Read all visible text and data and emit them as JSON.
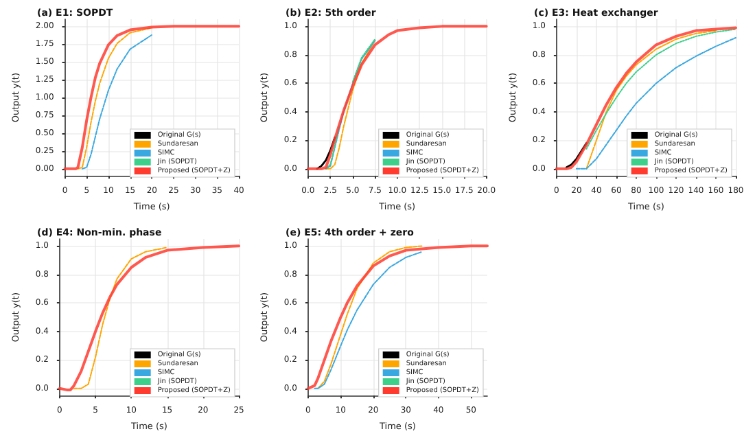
{
  "chart_data": [
    {
      "type": "line",
      "title": "(a) E1: SOPDT",
      "xlabel": "Time (s)",
      "ylabel": "Output y(t)",
      "grid": true,
      "legend": "bottom right",
      "x": [
        0,
        2.5,
        3,
        4,
        5,
        6,
        7,
        8,
        10,
        12,
        15,
        20,
        25,
        30,
        40
      ],
      "xlim": [
        0,
        40
      ],
      "xticks": [
        0,
        5,
        10,
        15,
        20,
        25,
        30,
        35,
        40
      ],
      "ylim": [
        -0.1,
        2.1
      ],
      "yticks": [
        {
          "value": 0,
          "label": "0.00"
        },
        {
          "value": 0.25,
          "label": "0.25"
        },
        {
          "value": 0.5,
          "label": "0.50"
        },
        {
          "value": 0.75,
          "label": "0.75"
        },
        {
          "value": 1,
          "label": "1.00"
        },
        {
          "value": 1.25,
          "label": "1.25"
        },
        {
          "value": 1.5,
          "label": "1.50"
        },
        {
          "value": 1.75,
          "label": "1.75"
        },
        {
          "value": 2,
          "label": "2.00"
        }
      ],
      "series": [
        {
          "name": "Original G(s)",
          "color": "#000000",
          "line_style": "solid",
          "values": [
            null,
            null,
            null,
            null,
            null,
            null,
            null,
            null,
            null,
            null,
            null,
            null,
            null,
            null,
            null
          ]
        },
        {
          "name": "Sundaresan",
          "color": "#ffa500",
          "line_style": "dashed",
          "values": [
            null,
            null,
            0,
            0.02,
            0.3,
            0.65,
            0.95,
            1.2,
            1.55,
            1.76,
            1.91,
            1.98,
            null,
            null,
            null
          ]
        },
        {
          "name": "SIMC",
          "color": "#3aa8e0",
          "line_style": "dashed",
          "values": [
            null,
            null,
            null,
            0,
            0.02,
            0.2,
            0.45,
            0.7,
            1.1,
            1.4,
            1.68,
            1.88,
            null,
            null,
            null
          ]
        },
        {
          "name": "Jin (SOPDT)",
          "color": "#3cd08a",
          "line_style": "dotted",
          "values": [
            null,
            null,
            null,
            null,
            null,
            null,
            null,
            null,
            null,
            null,
            null,
            null,
            null,
            null,
            null
          ]
        },
        {
          "name": "Proposed (SOPDT+Z)",
          "color": "#ff3b30",
          "line_style": "solid",
          "values": [
            0,
            0,
            0.02,
            0.3,
            0.68,
            1.0,
            1.28,
            1.48,
            1.74,
            1.87,
            1.95,
            1.99,
            2,
            2,
            2
          ]
        }
      ]
    },
    {
      "type": "line",
      "title": "(b) E2: 5th order",
      "xlabel": "Time (s)",
      "ylabel": "Output y(t)",
      "grid": true,
      "legend": "bottom right",
      "x": [
        0,
        1,
        1.5,
        2,
        2.5,
        3,
        3.5,
        4,
        5,
        6,
        7.5,
        9,
        10,
        12.5,
        15,
        20
      ],
      "xlim": [
        0,
        20
      ],
      "xticks": [
        {
          "value": 0,
          "label": "0.0"
        },
        {
          "value": 2.5,
          "label": "2.5"
        },
        {
          "value": 5,
          "label": "5.0"
        },
        {
          "value": 7.5,
          "label": "7.5"
        },
        {
          "value": 10,
          "label": "10.0"
        },
        {
          "value": 12.5,
          "label": "12.5"
        },
        {
          "value": 15,
          "label": "15.0"
        },
        {
          "value": 17.5,
          "label": "17.5"
        },
        {
          "value": 20,
          "label": "20.0"
        }
      ],
      "ylim": [
        -0.05,
        1.05
      ],
      "yticks": [
        {
          "value": 0,
          "label": "0.0"
        },
        {
          "value": 0.2,
          "label": "0.2"
        },
        {
          "value": 0.4,
          "label": "0.4"
        },
        {
          "value": 0.6,
          "label": "0.6"
        },
        {
          "value": 0.8,
          "label": "0.8"
        },
        {
          "value": 1,
          "label": "1.0"
        }
      ],
      "series": [
        {
          "name": "Original G(s)",
          "color": "#000000",
          "line_style": "solid",
          "values": [
            null,
            0,
            0.02,
            0.06,
            0.13,
            0.22,
            null,
            null,
            null,
            null,
            null,
            null,
            null,
            null,
            null,
            null
          ]
        },
        {
          "name": "Sundaresan",
          "color": "#ffa500",
          "line_style": "dashed",
          "values": [
            null,
            null,
            null,
            0,
            0,
            0.03,
            0.15,
            0.3,
            0.55,
            0.74,
            0.9,
            null,
            null,
            null,
            null,
            null
          ]
        },
        {
          "name": "SIMC",
          "color": "#3aa8e0",
          "line_style": "dashed",
          "values": [
            null,
            null,
            null,
            0,
            0.02,
            0.15,
            0.28,
            0.4,
            0.6,
            0.77,
            0.9,
            null,
            null,
            null,
            null,
            null
          ]
        },
        {
          "name": "Jin (SOPDT)",
          "color": "#3cd08a",
          "line_style": "dotted",
          "values": [
            null,
            null,
            null,
            0,
            0.03,
            0.16,
            0.3,
            null,
            0.61,
            0.78,
            0.91,
            null,
            null,
            null,
            null,
            null
          ]
        },
        {
          "name": "Proposed (SOPDT+Z)",
          "color": "#ff3b30",
          "line_style": "solid",
          "values": [
            0,
            0,
            0,
            0.01,
            0.1,
            0.21,
            0.31,
            0.41,
            0.58,
            0.73,
            0.87,
            0.94,
            0.97,
            0.99,
            1,
            1
          ]
        }
      ]
    },
    {
      "type": "line",
      "title": "(c) E3: Heat exchanger",
      "xlabel": "Time (s)",
      "ylabel": "Output y(t)",
      "grid": true,
      "legend": "bottom right",
      "x": [
        0,
        10,
        15,
        20,
        30,
        40,
        50,
        60,
        70,
        80,
        100,
        120,
        140,
        160,
        180
      ],
      "xlim": [
        0,
        180
      ],
      "xticks": [
        0,
        20,
        40,
        60,
        80,
        100,
        120,
        140,
        160,
        180
      ],
      "ylim": [
        -0.05,
        1.05
      ],
      "yticks": [
        {
          "value": 0,
          "label": "0.0"
        },
        {
          "value": 0.2,
          "label": "0.2"
        },
        {
          "value": 0.4,
          "label": "0.4"
        },
        {
          "value": 0.6,
          "label": "0.6"
        },
        {
          "value": 0.8,
          "label": "0.8"
        },
        {
          "value": 1,
          "label": "1.0"
        }
      ],
      "series": [
        {
          "name": "Original G(s)",
          "color": "#000000",
          "line_style": "solid",
          "values": [
            null,
            0.01,
            0.03,
            0.07,
            0.18,
            null,
            null,
            null,
            null,
            null,
            null,
            null,
            null,
            null,
            null
          ]
        },
        {
          "name": "Sundaresan",
          "color": "#ffa500",
          "line_style": "dashed",
          "values": [
            null,
            null,
            null,
            null,
            0,
            0.2,
            0.4,
            0.55,
            0.65,
            0.73,
            0.84,
            0.91,
            0.95,
            0.97,
            null
          ]
        },
        {
          "name": "SIMC",
          "color": "#3aa8e0",
          "line_style": "dashed",
          "values": [
            null,
            null,
            null,
            0,
            0,
            0.07,
            0.17,
            0.27,
            0.37,
            0.46,
            0.6,
            0.71,
            0.79,
            0.86,
            0.92
          ]
        },
        {
          "name": "Jin (SOPDT)",
          "color": "#3cd08a",
          "line_style": "dotted",
          "values": [
            null,
            null,
            null,
            null,
            0.14,
            0.27,
            0.39,
            0.5,
            0.6,
            0.68,
            0.8,
            0.88,
            0.93,
            0.96,
            0.98
          ]
        },
        {
          "name": "Proposed (SOPDT+Z)",
          "color": "#ff3b30",
          "line_style": "solid",
          "values": [
            0,
            0,
            0.01,
            0.05,
            0.17,
            0.31,
            0.45,
            0.57,
            0.67,
            0.75,
            0.87,
            0.93,
            0.97,
            0.98,
            0.99
          ]
        }
      ]
    },
    {
      "type": "line",
      "title": "(d) E4: Non-min. phase",
      "xlabel": "Time (s)",
      "ylabel": "Output y(t)",
      "grid": true,
      "legend": "bottom right",
      "x": [
        0,
        1,
        1.5,
        2,
        3,
        4,
        5,
        6,
        7,
        8,
        10,
        12,
        15,
        20,
        25
      ],
      "xlim": [
        0,
        25
      ],
      "xticks": [
        0,
        5,
        10,
        15,
        20,
        25
      ],
      "ylim": [
        -0.05,
        1.05
      ],
      "yticks": [
        {
          "value": 0,
          "label": "0.0"
        },
        {
          "value": 0.2,
          "label": "0.2"
        },
        {
          "value": 0.4,
          "label": "0.4"
        },
        {
          "value": 0.6,
          "label": "0.6"
        },
        {
          "value": 0.8,
          "label": "0.8"
        },
        {
          "value": 1,
          "label": "1.0"
        }
      ],
      "series": [
        {
          "name": "Original G(s)",
          "color": "#000000",
          "line_style": "solid",
          "values": [
            null,
            null,
            null,
            null,
            null,
            null,
            null,
            null,
            null,
            null,
            null,
            null,
            null,
            null,
            null
          ]
        },
        {
          "name": "Sundaresan",
          "color": "#ffa500",
          "line_style": "dashed",
          "values": [
            null,
            null,
            null,
            0,
            0,
            0.03,
            0.22,
            0.45,
            0.63,
            0.77,
            0.91,
            0.96,
            0.99,
            null,
            null
          ]
        },
        {
          "name": "SIMC",
          "color": "#3aa8e0",
          "line_style": "dashed",
          "values": [
            null,
            null,
            null,
            null,
            null,
            null,
            null,
            null,
            null,
            null,
            null,
            null,
            null,
            null,
            null
          ]
        },
        {
          "name": "Jin (SOPDT)",
          "color": "#3cd08a",
          "line_style": "dotted",
          "values": [
            null,
            null,
            null,
            null,
            null,
            null,
            null,
            null,
            null,
            null,
            null,
            null,
            null,
            null,
            null
          ]
        },
        {
          "name": "Proposed (SOPDT+Z)",
          "color": "#ff3b30",
          "line_style": "solid",
          "values": [
            0,
            -0.01,
            -0.01,
            0.02,
            0.12,
            0.26,
            0.4,
            0.53,
            0.64,
            0.73,
            0.85,
            0.92,
            0.97,
            0.99,
            1
          ]
        }
      ]
    },
    {
      "type": "line",
      "title": "(e) E5: 4th order + zero",
      "xlabel": "Time (s)",
      "ylabel": "Output y(t)",
      "grid": true,
      "legend": "bottom right",
      "x": [
        0,
        2,
        3,
        5,
        7,
        10,
        12,
        15,
        20,
        25,
        30,
        35,
        40,
        50,
        55
      ],
      "xlim": [
        0,
        55
      ],
      "xticks": [
        0,
        10,
        20,
        30,
        40,
        50
      ],
      "ylim": [
        -0.05,
        1.05
      ],
      "yticks": [
        {
          "value": 0,
          "label": "0.0"
        },
        {
          "value": 0.2,
          "label": "0.2"
        },
        {
          "value": 0.4,
          "label": "0.4"
        },
        {
          "value": 0.6,
          "label": "0.6"
        },
        {
          "value": 0.8,
          "label": "0.8"
        },
        {
          "value": 1,
          "label": "1.0"
        }
      ],
      "series": [
        {
          "name": "Original G(s)",
          "color": "#000000",
          "line_style": "solid",
          "values": [
            null,
            null,
            null,
            null,
            null,
            null,
            null,
            null,
            null,
            null,
            null,
            null,
            null,
            null,
            null
          ]
        },
        {
          "name": "Sundaresan",
          "color": "#ffa500",
          "line_style": "dashed",
          "values": [
            null,
            null,
            0,
            0.05,
            0.17,
            0.38,
            0.52,
            0.7,
            0.88,
            0.96,
            0.99,
            1,
            null,
            null,
            null
          ]
        },
        {
          "name": "SIMC",
          "color": "#3aa8e0",
          "line_style": "dashed",
          "values": [
            null,
            0,
            0,
            0.03,
            0.13,
            0.3,
            0.41,
            0.55,
            0.73,
            0.85,
            0.92,
            0.96,
            null,
            null,
            null
          ]
        },
        {
          "name": "Jin (SOPDT)",
          "color": "#3cd08a",
          "line_style": "dotted",
          "values": [
            null,
            null,
            null,
            null,
            null,
            null,
            null,
            null,
            null,
            null,
            null,
            null,
            null,
            null,
            null
          ]
        },
        {
          "name": "Proposed (SOPDT+Z)",
          "color": "#ff3b30",
          "line_style": "solid",
          "values": [
            0,
            0.02,
            0.07,
            0.2,
            0.33,
            0.5,
            0.6,
            0.72,
            0.86,
            0.93,
            0.97,
            0.98,
            0.99,
            1,
            1
          ]
        }
      ]
    }
  ]
}
